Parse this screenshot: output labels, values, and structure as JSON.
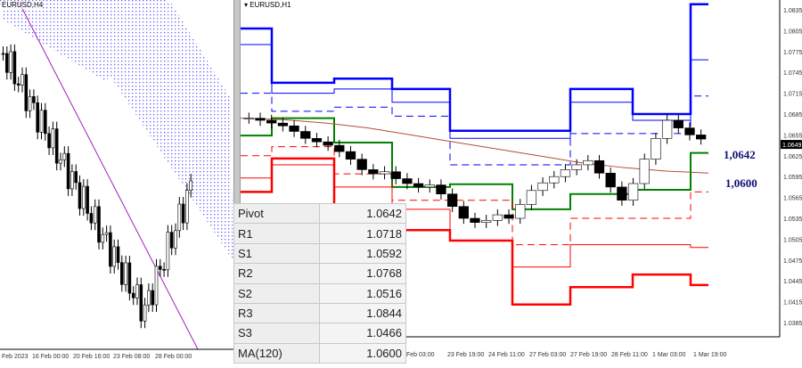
{
  "left_chart": {
    "title": "EURUSD,H4",
    "x_ticks": [
      "Feb 2023",
      "16 Feb 00:00",
      "20 Feb 16:00",
      "23 Feb 08:00",
      "28 Feb 00:00"
    ]
  },
  "right_chart": {
    "title": "EURUSD,H1",
    "last_price": "1.0649",
    "x_ticks": [
      "Feb 03:00",
      "23 Feb 19:00",
      "24 Feb 11:00",
      "27 Feb 03:00",
      "27 Feb 19:00",
      "28 Feb 11:00",
      "1 Mar 03:00",
      "1 Mar 19:00"
    ],
    "y_ticks": [
      "1.0835",
      "1.0805",
      "1.0775",
      "1.0745",
      "1.0715",
      "1.0685",
      "1.0655",
      "1.0625",
      "1.0595",
      "1.0565",
      "1.0535",
      "1.0505",
      "1.0475",
      "1.0445",
      "1.0415",
      "1.0385"
    ],
    "labels": {
      "pivot": "1,0642",
      "ma": "1,0600"
    }
  },
  "table": [
    {
      "label": "Pivot",
      "value": "1.0642"
    },
    {
      "label": "R1",
      "value": "1.0718"
    },
    {
      "label": "S1",
      "value": "1.0592"
    },
    {
      "label": "R2",
      "value": "1.0768"
    },
    {
      "label": "S2",
      "value": "1.0516"
    },
    {
      "label": "R3",
      "value": "1.0844"
    },
    {
      "label": "S3",
      "value": "1.0466"
    },
    {
      "label": "MA(120)",
      "value": "1.0600"
    }
  ],
  "colors": {
    "resistance": "#0000ff",
    "support": "#ff0000",
    "pivot": "#008000",
    "ma": "#b05030",
    "cloud": "#6060ff",
    "trendline": "#a020c0"
  },
  "chart_data": {
    "type": "line",
    "ylim": [
      1.0385,
      1.0835
    ],
    "levels": {
      "R3": [
        1.0808,
        1.073,
        1.0736,
        1.0721,
        1.0661,
        1.0661,
        1.0721,
        1.0685,
        1.0843
      ],
      "R2": [
        1.0785,
        1.0715,
        1.0721,
        1.0702,
        1.065,
        1.065,
        1.0702,
        1.0676,
        1.0763
      ],
      "R1": [
        1.0715,
        1.0689,
        1.0695,
        1.0682,
        1.0612,
        1.0612,
        1.0657,
        1.0657,
        1.0711
      ],
      "Pivot": [
        1.0654,
        1.0679,
        1.0644,
        1.058,
        1.0584,
        1.0548,
        1.057,
        1.0576,
        1.0629
      ],
      "S1": [
        1.0625,
        1.0638,
        1.0599,
        1.0561,
        1.0561,
        1.0497,
        1.0535,
        1.0535,
        1.0573
      ],
      "S2": [
        1.0593,
        1.0612,
        1.058,
        1.0548,
        1.0503,
        1.0465,
        1.0497,
        1.0497,
        1.0493
      ],
      "S3": [
        1.0573,
        1.0621,
        1.0554,
        1.0518,
        1.0503,
        1.0411,
        1.0436,
        1.0454,
        1.0439
      ]
    },
    "close": [
      1.0679,
      1.0676,
      1.0672,
      1.0668,
      1.066,
      1.065,
      1.0645,
      1.064,
      1.0631,
      1.062,
      1.0605,
      1.0599,
      1.0602,
      1.0592,
      1.0585,
      1.058,
      1.0583,
      1.057,
      1.0552,
      1.0535,
      1.0529,
      1.0532,
      1.054,
      1.0535,
      1.0555,
      1.0575,
      1.0586,
      1.0595,
      1.0605,
      1.0612,
      1.0618,
      1.06,
      1.058,
      1.0561,
      1.0585,
      1.062,
      1.065,
      1.0676,
      1.0665,
      1.0655,
      1.0649
    ],
    "ma": [
      1.0679,
      1.0677,
      1.0672,
      1.0665,
      1.0655,
      1.0645,
      1.0635,
      1.0625,
      1.0615,
      1.0608,
      1.0603,
      1.06
    ]
  }
}
